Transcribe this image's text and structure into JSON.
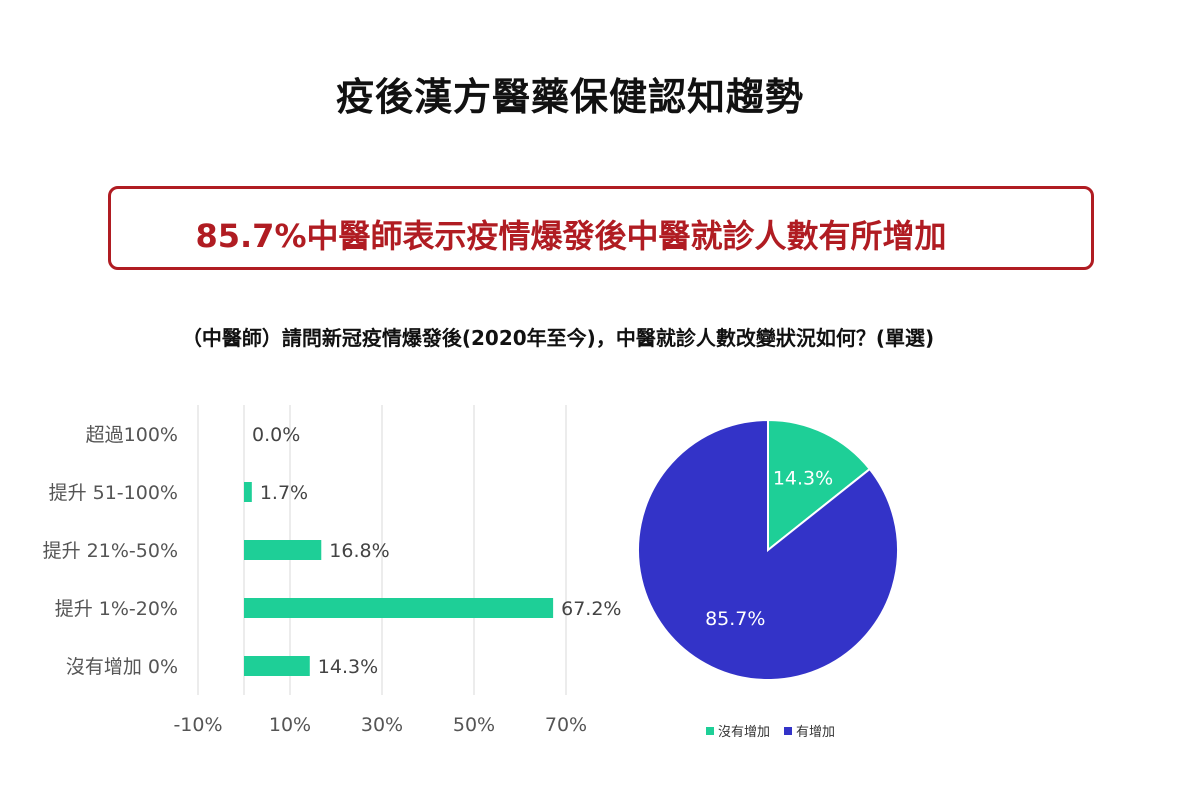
{
  "title": "疫後漢方醫藥保健認知趨勢",
  "headline": "85.7%中醫師表示疫情爆發後中醫就診人數有所增加",
  "question": "（中醫師）請問新冠疫情爆發後(2020年至今)，中醫就診人數改變狀況如何？(單選)",
  "colors": {
    "accent_red": "#b01c22",
    "bar_green": "#1ecf97",
    "pie_blue": "#3333c8",
    "pie_green": "#1ecf97"
  },
  "chart_data": [
    {
      "type": "bar",
      "orientation": "horizontal",
      "categories": [
        "超過100%",
        "提升 51-100%",
        "提升 21%-50%",
        "提升 1%-20%",
        "沒有增加 0%"
      ],
      "values": [
        0.0,
        1.7,
        16.8,
        67.2,
        14.3
      ],
      "value_labels": [
        "0.0%",
        "1.7%",
        "16.8%",
        "67.2%",
        "14.3%"
      ],
      "xticks": [
        "-10%",
        "10%",
        "30%",
        "50%",
        "70%"
      ],
      "xtick_values": [
        -10,
        10,
        30,
        50,
        70
      ],
      "xlim": [
        -10,
        70
      ],
      "grid": true
    },
    {
      "type": "pie",
      "labels": [
        "沒有增加",
        "有增加"
      ],
      "values": [
        14.3,
        85.7
      ],
      "value_labels": [
        "14.3%",
        "85.7%"
      ],
      "legend_position": "bottom"
    }
  ]
}
